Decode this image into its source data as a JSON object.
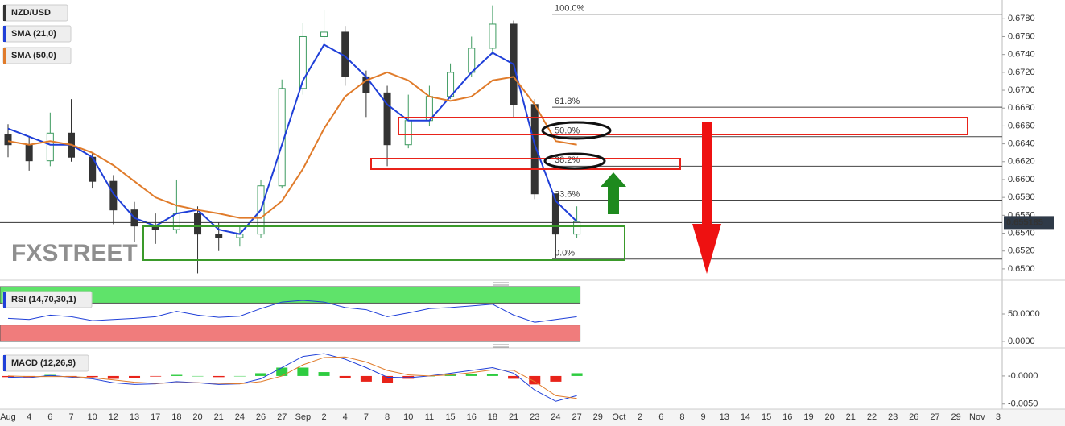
{
  "chart_data": [
    {
      "type": "candlestick",
      "title": "NZD/USD",
      "watermark": "FXSTREET",
      "categories": [
        "Aug",
        "4",
        "6",
        "7",
        "10",
        "12",
        "13",
        "17",
        "18",
        "20",
        "21",
        "24",
        "26",
        "27",
        "Sep",
        "2",
        "4",
        "7",
        "8",
        "10",
        "11",
        "15",
        "16",
        "18",
        "21",
        "23",
        "24",
        "27",
        "29",
        "Oct",
        "2",
        "6",
        "8",
        "9",
        "13",
        "14",
        "15",
        "16",
        "19",
        "20",
        "21",
        "22",
        "23",
        "26",
        "27",
        "29",
        "Nov",
        "3"
      ],
      "open": [
        0.665,
        0.6639,
        0.6621,
        0.6652,
        0.6625,
        0.6598,
        0.6566,
        0.6548,
        0.6544,
        0.6562,
        0.6539,
        0.6535,
        0.6539,
        0.6593,
        0.6702,
        0.676,
        0.6765,
        0.6715,
        0.6697,
        0.6639,
        0.6666,
        0.6693,
        0.672,
        0.6747,
        0.6774,
        0.6684,
        0.6584,
        0.6539,
        null,
        null,
        null,
        null,
        null,
        null,
        null,
        null,
        null,
        null,
        null,
        null,
        null,
        null,
        null,
        null,
        null,
        null,
        null,
        null
      ],
      "high": [
        0.6662,
        0.6648,
        0.6675,
        0.669,
        0.663,
        0.6605,
        0.6575,
        0.6562,
        0.66,
        0.657,
        0.6552,
        0.6548,
        0.66,
        0.6712,
        0.6775,
        0.679,
        0.6772,
        0.6722,
        0.6705,
        0.6695,
        0.6705,
        0.673,
        0.676,
        0.6795,
        0.6778,
        0.669,
        0.6582,
        0.657,
        null,
        null,
        null,
        null,
        null,
        null,
        null,
        null,
        null,
        null,
        null,
        null,
        null,
        null,
        null,
        null,
        null,
        null,
        null,
        null
      ],
      "low": [
        0.6625,
        0.661,
        0.6615,
        0.662,
        0.659,
        0.655,
        0.653,
        0.6528,
        0.654,
        0.6495,
        0.652,
        0.6525,
        0.6535,
        0.659,
        0.6695,
        0.6745,
        0.6705,
        0.667,
        0.6615,
        0.6635,
        0.666,
        0.669,
        0.6715,
        0.674,
        0.667,
        0.6578,
        0.6512,
        0.6535,
        null,
        null,
        null,
        null,
        null,
        null,
        null,
        null,
        null,
        null,
        null,
        null,
        null,
        null,
        null,
        null,
        null,
        null,
        null,
        null
      ],
      "close": [
        0.6639,
        0.6621,
        0.6652,
        0.6625,
        0.6598,
        0.6566,
        0.6548,
        0.6544,
        0.6562,
        0.6539,
        0.6535,
        0.6539,
        0.6593,
        0.6702,
        0.676,
        0.6765,
        0.6715,
        0.6697,
        0.6639,
        0.6666,
        0.6693,
        0.672,
        0.6747,
        0.6774,
        0.6684,
        0.6584,
        0.6539,
        0.6553,
        null,
        null,
        null,
        null,
        null,
        null,
        null,
        null,
        null,
        null,
        null,
        null,
        null,
        null,
        null,
        null,
        null,
        null,
        null,
        null
      ],
      "up_color": "#3c9a5f",
      "down_color": "#333333",
      "series": [
        {
          "name": "SMA (21,0)",
          "color": "#1f3fd8",
          "values": [
            0.6657,
            0.6648,
            0.6639,
            0.6639,
            0.6625,
            0.6584,
            0.6557,
            0.6548,
            0.6562,
            0.6566,
            0.6544,
            0.6539,
            0.6566,
            0.6639,
            0.6711,
            0.6751,
            0.6738,
            0.6715,
            0.6684,
            0.6666,
            0.6666,
            0.6693,
            0.672,
            0.6742,
            0.6729,
            0.6639,
            0.6576,
            0.6553,
            null,
            null,
            null,
            null,
            null,
            null,
            null,
            null,
            null,
            null,
            null,
            null,
            null,
            null,
            null,
            null,
            null,
            null,
            null,
            null
          ]
        },
        {
          "name": "SMA (50,0)",
          "color": "#e07b2a",
          "values": [
            0.6643,
            0.6639,
            0.6643,
            0.6639,
            0.663,
            0.6616,
            0.6598,
            0.658,
            0.6571,
            0.6566,
            0.6562,
            0.6557,
            0.6557,
            0.6576,
            0.6612,
            0.6657,
            0.6693,
            0.6711,
            0.672,
            0.6711,
            0.6693,
            0.6688,
            0.6693,
            0.6711,
            0.6715,
            0.6684,
            0.6643,
            0.6639,
            null,
            null,
            null,
            null,
            null,
            null,
            null,
            null,
            null,
            null,
            null,
            null,
            null,
            null,
            null,
            null,
            null,
            null,
            null,
            null
          ]
        }
      ],
      "fib_levels": [
        {
          "label": "100.0%",
          "value": 0.6785
        },
        {
          "label": "61.8%",
          "value": 0.6681
        },
        {
          "label": "50.0%",
          "value": 0.6648
        },
        {
          "label": "38.2%",
          "value": 0.6615
        },
        {
          "label": "23.6%",
          "value": 0.6577
        },
        {
          "label": "0.0%",
          "value": 0.6511
        }
      ],
      "last_price": {
        "value": 0.655185,
        "label": "0.655185"
      },
      "ylim": [
        0.649,
        0.6801
      ],
      "yticks": [
        {
          "value": 0.65,
          "label": "0.6500"
        },
        {
          "value": 0.652,
          "label": "0.6520"
        },
        {
          "value": 0.654,
          "label": "0.6540"
        },
        {
          "value": 0.656,
          "label": "0.6560"
        },
        {
          "value": 0.658,
          "label": "0.6580"
        },
        {
          "value": 0.66,
          "label": "0.6600"
        },
        {
          "value": 0.662,
          "label": "0.6620"
        },
        {
          "value": 0.664,
          "label": "0.6640"
        },
        {
          "value": 0.666,
          "label": "0.6660"
        },
        {
          "value": 0.668,
          "label": "0.6680"
        },
        {
          "value": 0.67,
          "label": "0.6700"
        },
        {
          "value": 0.672,
          "label": "0.6720"
        },
        {
          "value": 0.674,
          "label": "0.6740"
        },
        {
          "value": 0.676,
          "label": "0.6760"
        },
        {
          "value": 0.678,
          "label": "0.6780"
        }
      ]
    },
    {
      "type": "line",
      "title": "RSI (14,70,30,1)",
      "overbought": 70,
      "oversold": 30,
      "overbought_color": "#5fe36a",
      "oversold_color": "#f07c7c",
      "series": [
        {
          "color": "#1f3fd8",
          "values": [
            42,
            40,
            48,
            45,
            38,
            40,
            42,
            45,
            55,
            48,
            44,
            46,
            60,
            72,
            75,
            72,
            62,
            58,
            45,
            52,
            60,
            62,
            65,
            68,
            48,
            35,
            40,
            45,
            null,
            null,
            null,
            null,
            null,
            null,
            null,
            null,
            null,
            null,
            null,
            null,
            null,
            null,
            null,
            null,
            null,
            null,
            null,
            null
          ]
        }
      ],
      "ylim": [
        -6,
        106
      ],
      "yticks": [
        {
          "value": 50,
          "label": "50.0000"
        },
        {
          "value": 0,
          "label": "0.0000"
        }
      ]
    },
    {
      "type": "macd",
      "title": "MACD (12,26,9)",
      "up_color": "#2ecc40",
      "down_color": "#e8231a",
      "series": [
        {
          "color": "#1f3fd8",
          "values": [
            -0.0002,
            -0.0003,
            0.0001,
            -0.0002,
            -0.0005,
            -0.0012,
            -0.0015,
            -0.0014,
            -0.001,
            -0.0012,
            -0.0015,
            -0.0014,
            -0.0005,
            0.0015,
            0.0035,
            0.004,
            0.003,
            0.0015,
            -0.0002,
            -0.0003,
            0.0,
            0.0005,
            0.001,
            0.0015,
            0.0005,
            -0.0025,
            -0.0045,
            -0.0035,
            null,
            null,
            null,
            null,
            null,
            null,
            null,
            null,
            null,
            null,
            null,
            null,
            null,
            null,
            null,
            null,
            null,
            null,
            null,
            null
          ]
        },
        {
          "color": "#e07b2a",
          "values": [
            0,
            -0.0001,
            -0.0001,
            -0.0001,
            -0.0003,
            -0.0007,
            -0.0011,
            -0.0013,
            -0.0012,
            -0.0012,
            -0.0013,
            -0.0014,
            -0.001,
            0.0,
            0.002,
            0.0033,
            0.0034,
            0.0025,
            0.001,
            0.0002,
            0.0,
            0.0002,
            0.0006,
            0.0011,
            0.001,
            -0.001,
            -0.0035,
            -0.004,
            null,
            null,
            null,
            null,
            null,
            null,
            null,
            null,
            null,
            null,
            null,
            null,
            null,
            null,
            null,
            null,
            null,
            null,
            null,
            null
          ]
        }
      ],
      "histogram": [
        -0.0002,
        -0.0002,
        0.0002,
        -0.0001,
        -0.0002,
        -0.0005,
        -0.0004,
        -0.0001,
        0.0002,
        0,
        -0.0002,
        0,
        0.0005,
        0.0015,
        0.0015,
        0.0007,
        -0.0004,
        -0.001,
        -0.0012,
        -0.0005,
        0,
        0.0003,
        0.0004,
        0.0004,
        -0.0005,
        -0.0015,
        -0.001,
        0.0005,
        null,
        null,
        null,
        null,
        null,
        null,
        null,
        null,
        null,
        null,
        null,
        null,
        null,
        null,
        null,
        null,
        null,
        null,
        null,
        null
      ],
      "ylim": [
        -0.0059,
        0.0043
      ],
      "yticks": [
        {
          "value": 0,
          "label": "-0.0000"
        },
        {
          "value": -0.005,
          "label": "-0.0050"
        }
      ]
    }
  ]
}
